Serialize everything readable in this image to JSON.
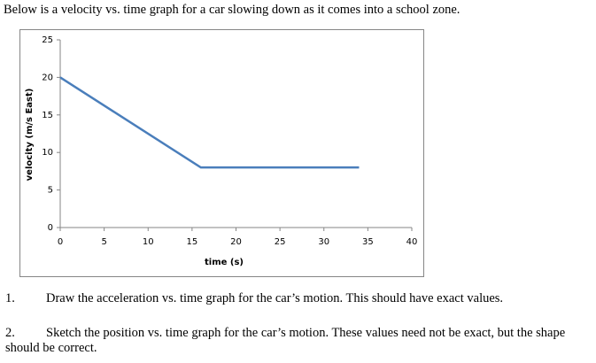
{
  "intro": "Below is a velocity vs. time graph for a car slowing down as it comes into a school zone.",
  "chart_data": {
    "type": "line",
    "x_label": "time (s)",
    "y_label": "velocity (m/s East)",
    "x": [
      0,
      16,
      34
    ],
    "series": [
      {
        "color": "#4a7ebb",
        "values": [
          20,
          8,
          8
        ]
      }
    ],
    "xlim": [
      0,
      40
    ],
    "xticks": [
      0,
      5,
      10,
      15,
      20,
      25,
      30,
      35,
      40
    ],
    "ylim": [
      0,
      25
    ],
    "yticks": [
      0,
      5,
      10,
      15,
      20,
      25
    ]
  },
  "questions": [
    {
      "number": "1.",
      "text": "Draw the acceleration vs. time graph for the car’s motion.  This should have exact values."
    },
    {
      "number": "2.",
      "text": "Sketch the position vs. time graph for the car’s motion.  These values need not be exact, but the shape should be correct."
    }
  ]
}
